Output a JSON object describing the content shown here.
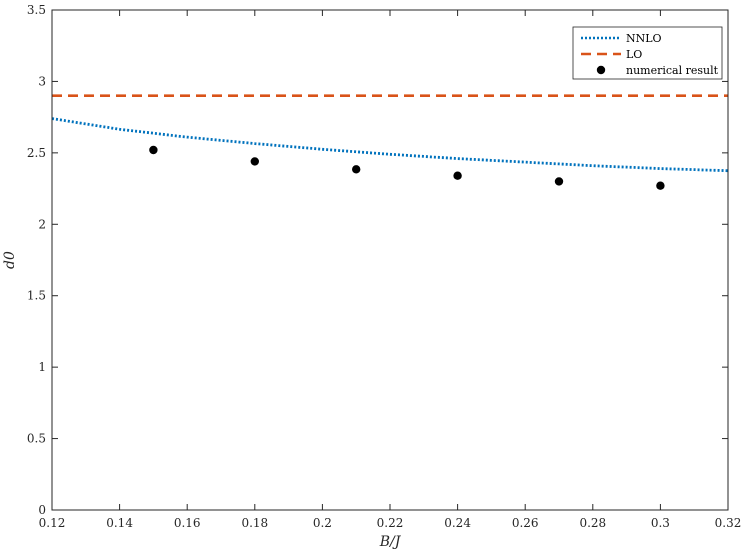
{
  "chart_data": {
    "type": "line",
    "title": "",
    "xlabel": "B/J",
    "ylabel": "d0",
    "xlim": [
      0.12,
      0.32
    ],
    "ylim": [
      0,
      3.5
    ],
    "xticks": [
      0.12,
      0.14,
      0.16,
      0.18,
      0.2,
      0.22,
      0.24,
      0.26,
      0.28,
      0.3,
      0.32
    ],
    "xtick_labels": [
      "0.12",
      "0.14",
      "0.16",
      "0.18",
      "0.2",
      "0.22",
      "0.24",
      "0.26",
      "0.28",
      "0.3",
      "0.32"
    ],
    "yticks": [
      0,
      0.5,
      1,
      1.5,
      2,
      2.5,
      3,
      3.5
    ],
    "ytick_labels": [
      "0",
      "0.5",
      "1",
      "1.5",
      "2",
      "2.5",
      "3",
      "3.5"
    ],
    "grid": false,
    "legend_position": "top-right",
    "series": [
      {
        "name": "NNLO",
        "style": "dotted",
        "color": "#0072BD",
        "x": [
          0.12,
          0.14,
          0.16,
          0.18,
          0.2,
          0.22,
          0.24,
          0.26,
          0.28,
          0.3,
          0.32
        ],
        "y": [
          2.74,
          2.665,
          2.61,
          2.565,
          2.525,
          2.49,
          2.46,
          2.435,
          2.41,
          2.39,
          2.375
        ]
      },
      {
        "name": "LO",
        "style": "dashed",
        "color": "#D95319",
        "x": [
          0.12,
          0.32
        ],
        "y": [
          2.9,
          2.9
        ]
      },
      {
        "name": "numerical result",
        "style": "markers",
        "color": "#000000",
        "x": [
          0.15,
          0.18,
          0.21,
          0.24,
          0.27,
          0.3
        ],
        "y": [
          2.52,
          2.44,
          2.385,
          2.34,
          2.3,
          2.27
        ]
      }
    ]
  }
}
